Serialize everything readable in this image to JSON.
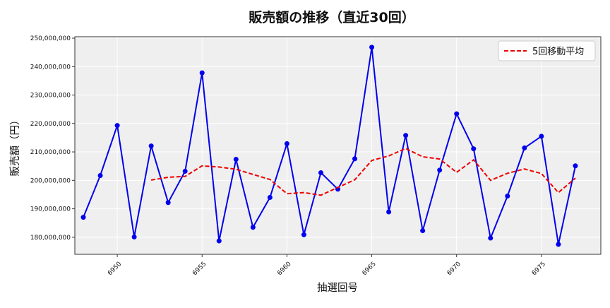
{
  "chart_data": {
    "type": "line",
    "title": "販売額の推移（直近30回）",
    "xlabel": "抽選回号",
    "ylabel": "販売額（円）",
    "x": [
      6948,
      6949,
      6950,
      6951,
      6952,
      6953,
      6954,
      6955,
      6956,
      6957,
      6958,
      6959,
      6960,
      6961,
      6962,
      6963,
      6964,
      6965,
      6966,
      6967,
      6968,
      6969,
      6970,
      6971,
      6972,
      6973,
      6974,
      6975,
      6976,
      6977
    ],
    "x_ticks": [
      6950,
      6955,
      6960,
      6965,
      6970,
      6975
    ],
    "xlim": [
      6947.5,
      6978.5
    ],
    "ylim": [
      174000000,
      250500000
    ],
    "y_ticks": [
      180000000,
      190000000,
      200000000,
      210000000,
      220000000,
      230000000,
      240000000,
      250000000
    ],
    "y_tick_labels": [
      "180,000,000",
      "190,000,000",
      "200,000,000",
      "210,000,000",
      "220,000,000",
      "230,000,000",
      "240,000,000",
      "250,000,000"
    ],
    "grid": true,
    "legend_position": "top-right",
    "series": [
      {
        "name": "",
        "style": "solid-markers",
        "color": "#0000ee",
        "values": [
          187000000,
          201700000,
          219300000,
          180100000,
          212100000,
          192200000,
          203200000,
          237800000,
          178700000,
          207400000,
          183500000,
          194000000,
          212900000,
          180900000,
          202700000,
          196900000,
          207600000,
          246800000,
          188900000,
          215800000,
          182300000,
          203600000,
          223400000,
          211100000,
          179700000,
          194500000,
          211400000,
          215500000,
          177500000,
          205100000
        ]
      },
      {
        "name": "5回移動平均",
        "style": "dashed",
        "color": "#ee0000",
        "values": [
          null,
          null,
          null,
          null,
          200100000,
          201100000,
          201400000,
          205100000,
          204700000,
          203900000,
          202100000,
          200300000,
          195300000,
          195700000,
          194800000,
          197500000,
          200200000,
          207000000,
          208600000,
          211200000,
          208300000,
          207500000,
          202800000,
          207200000,
          200000000,
          202500000,
          204000000,
          202400000,
          195700000,
          200800000
        ]
      }
    ]
  }
}
